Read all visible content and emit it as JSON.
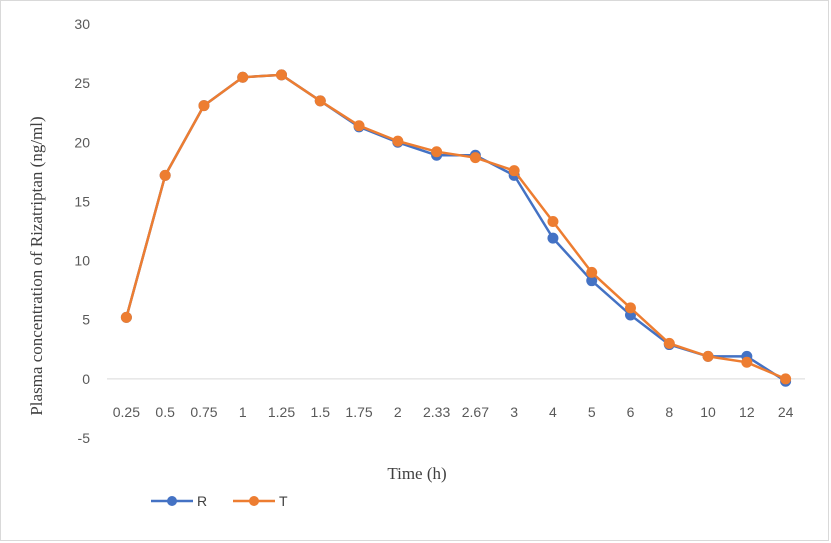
{
  "chart_data": {
    "type": "line",
    "title": "",
    "xlabel": "Time (h)",
    "ylabel": "Plasma concentration of Rizatriptan (ng/ml)",
    "ylim": [
      -5,
      30
    ],
    "yticks": [
      -5,
      0,
      5,
      10,
      15,
      20,
      25,
      30
    ],
    "grid": false,
    "legend_position": "bottom-left",
    "categories": [
      "0.25",
      "0.5",
      "0.75",
      "1",
      "1.25",
      "1.5",
      "1.75",
      "2",
      "2.33",
      "2.67",
      "3",
      "4",
      "5",
      "6",
      "8",
      "10",
      "12",
      "24"
    ],
    "series": [
      {
        "name": "R",
        "color": "#4472c4",
        "values": [
          5.2,
          17.2,
          23.1,
          25.5,
          25.7,
          23.5,
          21.3,
          20.0,
          18.9,
          18.9,
          17.2,
          11.9,
          8.3,
          5.4,
          2.9,
          1.9,
          1.9,
          -0.2
        ]
      },
      {
        "name": "T",
        "color": "#ed7d31",
        "values": [
          5.2,
          17.2,
          23.1,
          25.5,
          25.7,
          23.5,
          21.4,
          20.1,
          19.2,
          18.7,
          17.6,
          13.3,
          9.0,
          6.0,
          3.0,
          1.9,
          1.4,
          0.0
        ]
      }
    ]
  }
}
